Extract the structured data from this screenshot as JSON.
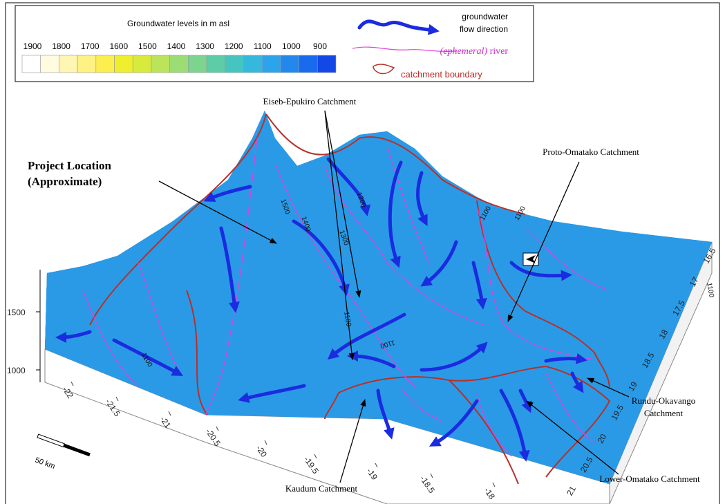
{
  "legend": {
    "title": "Groundwater levels in m asl",
    "scale_labels": [
      "1900",
      "1800",
      "1700",
      "1600",
      "1500",
      "1400",
      "1300",
      "1200",
      "1100",
      "1000",
      "900"
    ],
    "flow": [
      "groundwater",
      "flow direction"
    ],
    "river": {
      "italic": "(ephemeral)",
      "text": "river"
    },
    "boundary": "catchment boundary"
  },
  "annotations": {
    "eiseb": "Eiseb-Epukiro Catchment",
    "project": [
      "Project Location",
      "(Approximate)"
    ],
    "proto": "Proto-Omatako Catchment",
    "rundu": [
      "Rundu-Okavango",
      "Catchment"
    ],
    "lower": "Lower-Omatako Catchment",
    "kaudum": "Kaudum Catchment"
  },
  "axes": {
    "z": [
      "1500",
      "1000"
    ],
    "bottom": [
      "-22",
      "-21.5",
      "-21",
      "-20.5",
      "-20",
      "-19.5",
      "-19",
      "-18.5",
      "-18"
    ],
    "right": [
      "16.5",
      "17",
      "17.5",
      "18",
      "18.5",
      "19",
      "19.5",
      "20",
      "20.5",
      "21"
    ]
  },
  "contours": [
    "1500",
    "1400",
    "1300",
    "1200",
    "1100",
    "1100",
    "1100",
    "1100",
    "1100",
    "1100"
  ],
  "scale_bar": "50 km"
}
